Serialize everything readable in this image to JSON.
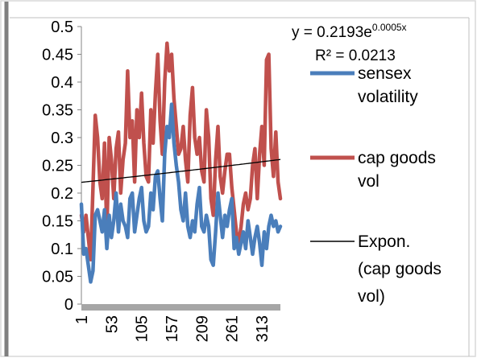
{
  "chart_data": {
    "type": "line",
    "ylim": [
      0,
      0.5
    ],
    "y_ticks": [
      "0",
      "0.05",
      "0.1",
      "0.15",
      "0.2",
      "0.25",
      "0.3",
      "0.35",
      "0.4",
      "0.45",
      "0.5"
    ],
    "y_tick_values": [
      0,
      0.05,
      0.1,
      0.15,
      0.2,
      0.25,
      0.3,
      0.35,
      0.4,
      0.45,
      0.5
    ],
    "xlim": [
      1,
      345
    ],
    "x_ticks": [
      "1",
      "53",
      "105",
      "157",
      "209",
      "261",
      "313"
    ],
    "x_tick_values": [
      1,
      53,
      105,
      157,
      209,
      261,
      313
    ],
    "grid": false,
    "legend_position": "right",
    "trendline": {
      "name": "Expon. (cap goods vol)",
      "equation": "y = 0.2193e",
      "exponent": "0.0005x",
      "r2": "R² = 0.0213",
      "a": 0.2193,
      "b": 0.0005,
      "color": "#000000"
    },
    "series": [
      {
        "name": "sensex volatility",
        "color": "#4a7ebb",
        "x": [
          1,
          5,
          9,
          13,
          17,
          21,
          25,
          29,
          33,
          37,
          41,
          45,
          49,
          53,
          57,
          61,
          65,
          69,
          73,
          77,
          81,
          85,
          89,
          93,
          97,
          101,
          105,
          109,
          113,
          117,
          121,
          125,
          129,
          133,
          137,
          141,
          145,
          149,
          153,
          157,
          161,
          165,
          169,
          173,
          177,
          181,
          185,
          189,
          193,
          197,
          201,
          205,
          209,
          213,
          217,
          221,
          225,
          229,
          233,
          237,
          241,
          245,
          249,
          253,
          257,
          261,
          265,
          269,
          273,
          277,
          281,
          285,
          289,
          293,
          297,
          301,
          305,
          309,
          313,
          317,
          321,
          325,
          329,
          333,
          337,
          341,
          345
        ],
        "values": [
          0.18,
          0.09,
          0.1,
          0.07,
          0.04,
          0.06,
          0.16,
          0.17,
          0.15,
          0.13,
          0.17,
          0.1,
          0.16,
          0.12,
          0.15,
          0.2,
          0.13,
          0.18,
          0.15,
          0.14,
          0.12,
          0.19,
          0.2,
          0.13,
          0.16,
          0.19,
          0.21,
          0.15,
          0.13,
          0.14,
          0.2,
          0.17,
          0.23,
          0.24,
          0.19,
          0.15,
          0.27,
          0.32,
          0.3,
          0.36,
          0.29,
          0.25,
          0.22,
          0.17,
          0.15,
          0.2,
          0.14,
          0.12,
          0.15,
          0.13,
          0.18,
          0.21,
          0.14,
          0.13,
          0.16,
          0.14,
          0.08,
          0.07,
          0.13,
          0.2,
          0.16,
          0.12,
          0.16,
          0.14,
          0.17,
          0.19,
          0.1,
          0.12,
          0.09,
          0.11,
          0.13,
          0.1,
          0.15,
          0.12,
          0.09,
          0.12,
          0.14,
          0.11,
          0.07,
          0.13,
          0.1,
          0.14,
          0.16,
          0.14,
          0.15,
          0.13,
          0.14
        ]
      },
      {
        "name": "cap goods vol",
        "color": "#c0504d",
        "x": [
          1,
          5,
          9,
          13,
          17,
          21,
          25,
          29,
          33,
          37,
          41,
          45,
          49,
          53,
          57,
          61,
          65,
          69,
          73,
          77,
          81,
          85,
          89,
          93,
          97,
          101,
          105,
          109,
          113,
          117,
          121,
          125,
          129,
          133,
          137,
          141,
          145,
          149,
          153,
          157,
          161,
          165,
          169,
          173,
          177,
          181,
          185,
          189,
          193,
          197,
          201,
          205,
          209,
          213,
          217,
          221,
          225,
          229,
          233,
          237,
          241,
          245,
          249,
          253,
          257,
          261,
          265,
          269,
          273,
          277,
          281,
          285,
          289,
          293,
          297,
          301,
          305,
          309,
          313,
          317,
          321,
          325,
          329,
          333,
          337,
          341,
          345
        ],
        "values": [
          0.16,
          0.13,
          0.16,
          0.12,
          0.08,
          0.21,
          0.34,
          0.3,
          0.22,
          0.19,
          0.29,
          0.13,
          0.3,
          0.26,
          0.19,
          0.28,
          0.31,
          0.2,
          0.26,
          0.29,
          0.42,
          0.3,
          0.33,
          0.22,
          0.35,
          0.3,
          0.38,
          0.29,
          0.23,
          0.22,
          0.35,
          0.29,
          0.38,
          0.45,
          0.33,
          0.27,
          0.4,
          0.47,
          0.42,
          0.45,
          0.37,
          0.32,
          0.27,
          0.28,
          0.32,
          0.26,
          0.22,
          0.34,
          0.39,
          0.3,
          0.27,
          0.3,
          0.24,
          0.22,
          0.35,
          0.3,
          0.19,
          0.16,
          0.26,
          0.32,
          0.23,
          0.2,
          0.24,
          0.27,
          0.27,
          0.21,
          0.17,
          0.13,
          0.11,
          0.14,
          0.18,
          0.2,
          0.17,
          0.19,
          0.25,
          0.28,
          0.19,
          0.27,
          0.32,
          0.25,
          0.44,
          0.45,
          0.28,
          0.23,
          0.31,
          0.22,
          0.19
        ]
      }
    ]
  }
}
